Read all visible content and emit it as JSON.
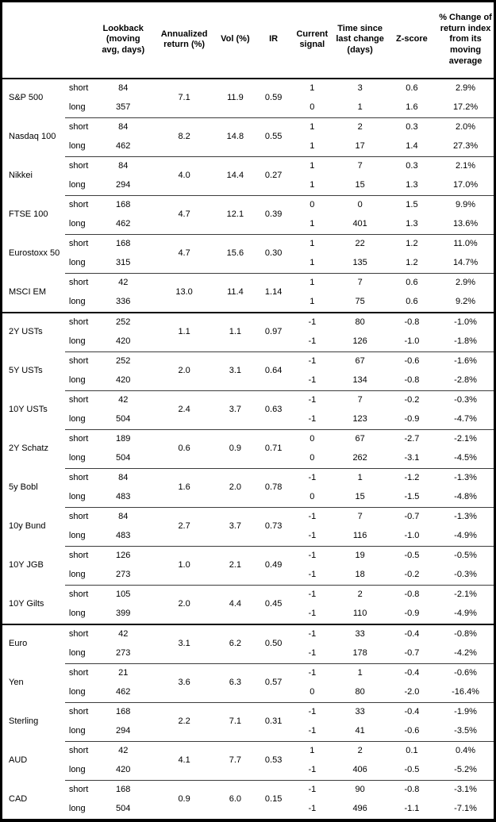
{
  "table": {
    "corner": "",
    "horizon_labels": {
      "short": "short",
      "long": "long"
    },
    "columns": [
      "Lookback\n(moving\navg, days)",
      "Annualized\nreturn (%)",
      "Vol (%)",
      "IR",
      "Current\nsignal",
      "Time since\nlast change\n(days)",
      "Z-score",
      "% Change of\nreturn index\nfrom its\nmoving\naverage"
    ],
    "column_names": [
      "lookback",
      "annualized-return",
      "vol",
      "ir",
      "current-signal",
      "time-since-last-change",
      "z-score",
      "pct-change-from-moving-average"
    ],
    "sections": [
      {
        "assets": [
          {
            "name": "S&P 500",
            "ann_return": "7.1",
            "vol": "11.9",
            "ir": "0.59",
            "short": {
              "lookback": "84",
              "signal": "1",
              "time_since": "3",
              "z_score": "0.6",
              "pct_change": "2.9%"
            },
            "long": {
              "lookback": "357",
              "signal": "0",
              "time_since": "1",
              "z_score": "1.6",
              "pct_change": "17.2%"
            }
          },
          {
            "name": "Nasdaq 100",
            "ann_return": "8.2",
            "vol": "14.8",
            "ir": "0.55",
            "short": {
              "lookback": "84",
              "signal": "1",
              "time_since": "2",
              "z_score": "0.3",
              "pct_change": "2.0%"
            },
            "long": {
              "lookback": "462",
              "signal": "1",
              "time_since": "17",
              "z_score": "1.4",
              "pct_change": "27.3%"
            }
          },
          {
            "name": "Nikkei",
            "ann_return": "4.0",
            "vol": "14.4",
            "ir": "0.27",
            "short": {
              "lookback": "84",
              "signal": "1",
              "time_since": "7",
              "z_score": "0.3",
              "pct_change": "2.1%"
            },
            "long": {
              "lookback": "294",
              "signal": "1",
              "time_since": "15",
              "z_score": "1.3",
              "pct_change": "17.0%"
            }
          },
          {
            "name": "FTSE 100",
            "ann_return": "4.7",
            "vol": "12.1",
            "ir": "0.39",
            "short": {
              "lookback": "168",
              "signal": "0",
              "time_since": "0",
              "z_score": "1.5",
              "pct_change": "9.9%"
            },
            "long": {
              "lookback": "462",
              "signal": "1",
              "time_since": "401",
              "z_score": "1.3",
              "pct_change": "13.6%"
            }
          },
          {
            "name": "Eurostoxx 50",
            "ann_return": "4.7",
            "vol": "15.6",
            "ir": "0.30",
            "short": {
              "lookback": "168",
              "signal": "1",
              "time_since": "22",
              "z_score": "1.2",
              "pct_change": "11.0%"
            },
            "long": {
              "lookback": "315",
              "signal": "1",
              "time_since": "135",
              "z_score": "1.2",
              "pct_change": "14.7%"
            }
          },
          {
            "name": "MSCI EM",
            "ann_return": "13.0",
            "vol": "11.4",
            "ir": "1.14",
            "short": {
              "lookback": "42",
              "signal": "1",
              "time_since": "7",
              "z_score": "0.6",
              "pct_change": "2.9%"
            },
            "long": {
              "lookback": "336",
              "signal": "1",
              "time_since": "75",
              "z_score": "0.6",
              "pct_change": "9.2%"
            }
          }
        ]
      },
      {
        "assets": [
          {
            "name": "2Y USTs",
            "ann_return": "1.1",
            "vol": "1.1",
            "ir": "0.97",
            "short": {
              "lookback": "252",
              "signal": "-1",
              "time_since": "80",
              "z_score": "-0.8",
              "pct_change": "-1.0%"
            },
            "long": {
              "lookback": "420",
              "signal": "-1",
              "time_since": "126",
              "z_score": "-1.0",
              "pct_change": "-1.8%"
            }
          },
          {
            "name": "5Y USTs",
            "ann_return": "2.0",
            "vol": "3.1",
            "ir": "0.64",
            "short": {
              "lookback": "252",
              "signal": "-1",
              "time_since": "67",
              "z_score": "-0.6",
              "pct_change": "-1.6%"
            },
            "long": {
              "lookback": "420",
              "signal": "-1",
              "time_since": "134",
              "z_score": "-0.8",
              "pct_change": "-2.8%"
            }
          },
          {
            "name": "10Y USTs",
            "ann_return": "2.4",
            "vol": "3.7",
            "ir": "0.63",
            "short": {
              "lookback": "42",
              "signal": "-1",
              "time_since": "7",
              "z_score": "-0.2",
              "pct_change": "-0.3%"
            },
            "long": {
              "lookback": "504",
              "signal": "-1",
              "time_since": "123",
              "z_score": "-0.9",
              "pct_change": "-4.7%"
            }
          },
          {
            "name": "2Y Schatz",
            "ann_return": "0.6",
            "vol": "0.9",
            "ir": "0.71",
            "short": {
              "lookback": "189",
              "signal": "0",
              "time_since": "67",
              "z_score": "-2.7",
              "pct_change": "-2.1%"
            },
            "long": {
              "lookback": "504",
              "signal": "0",
              "time_since": "262",
              "z_score": "-3.1",
              "pct_change": "-4.5%"
            }
          },
          {
            "name": "5y Bobl",
            "ann_return": "1.6",
            "vol": "2.0",
            "ir": "0.78",
            "short": {
              "lookback": "84",
              "signal": "-1",
              "time_since": "1",
              "z_score": "-1.2",
              "pct_change": "-1.3%"
            },
            "long": {
              "lookback": "483",
              "signal": "0",
              "time_since": "15",
              "z_score": "-1.5",
              "pct_change": "-4.8%"
            }
          },
          {
            "name": "10y Bund",
            "ann_return": "2.7",
            "vol": "3.7",
            "ir": "0.73",
            "short": {
              "lookback": "84",
              "signal": "-1",
              "time_since": "7",
              "z_score": "-0.7",
              "pct_change": "-1.3%"
            },
            "long": {
              "lookback": "483",
              "signal": "-1",
              "time_since": "116",
              "z_score": "-1.0",
              "pct_change": "-4.9%"
            }
          },
          {
            "name": "10Y JGB",
            "ann_return": "1.0",
            "vol": "2.1",
            "ir": "0.49",
            "short": {
              "lookback": "126",
              "signal": "-1",
              "time_since": "19",
              "z_score": "-0.5",
              "pct_change": "-0.5%"
            },
            "long": {
              "lookback": "273",
              "signal": "-1",
              "time_since": "18",
              "z_score": "-0.2",
              "pct_change": "-0.3%"
            }
          },
          {
            "name": "10Y Gilts",
            "ann_return": "2.0",
            "vol": "4.4",
            "ir": "0.45",
            "short": {
              "lookback": "105",
              "signal": "-1",
              "time_since": "2",
              "z_score": "-0.8",
              "pct_change": "-2.1%"
            },
            "long": {
              "lookback": "399",
              "signal": "-1",
              "time_since": "110",
              "z_score": "-0.9",
              "pct_change": "-4.9%"
            }
          }
        ]
      },
      {
        "assets": [
          {
            "name": "Euro",
            "ann_return": "3.1",
            "vol": "6.2",
            "ir": "0.50",
            "short": {
              "lookback": "42",
              "signal": "-1",
              "time_since": "33",
              "z_score": "-0.4",
              "pct_change": "-0.8%"
            },
            "long": {
              "lookback": "273",
              "signal": "-1",
              "time_since": "178",
              "z_score": "-0.7",
              "pct_change": "-4.2%"
            }
          },
          {
            "name": "Yen",
            "ann_return": "3.6",
            "vol": "6.3",
            "ir": "0.57",
            "short": {
              "lookback": "21",
              "signal": "-1",
              "time_since": "1",
              "z_score": "-0.4",
              "pct_change": "-0.6%"
            },
            "long": {
              "lookback": "462",
              "signal": "0",
              "time_since": "80",
              "z_score": "-2.0",
              "pct_change": "-16.4%"
            }
          },
          {
            "name": "Sterling",
            "ann_return": "2.2",
            "vol": "7.1",
            "ir": "0.31",
            "short": {
              "lookback": "168",
              "signal": "-1",
              "time_since": "33",
              "z_score": "-0.4",
              "pct_change": "-1.9%"
            },
            "long": {
              "lookback": "294",
              "signal": "-1",
              "time_since": "41",
              "z_score": "-0.6",
              "pct_change": "-3.5%"
            }
          },
          {
            "name": "AUD",
            "ann_return": "4.1",
            "vol": "7.7",
            "ir": "0.53",
            "short": {
              "lookback": "42",
              "signal": "1",
              "time_since": "2",
              "z_score": "0.1",
              "pct_change": "0.4%"
            },
            "long": {
              "lookback": "420",
              "signal": "-1",
              "time_since": "406",
              "z_score": "-0.5",
              "pct_change": "-5.2%"
            }
          },
          {
            "name": "CAD",
            "ann_return": "0.9",
            "vol": "6.0",
            "ir": "0.15",
            "short": {
              "lookback": "168",
              "signal": "-1",
              "time_since": "90",
              "z_score": "-0.8",
              "pct_change": "-3.1%"
            },
            "long": {
              "lookback": "504",
              "signal": "-1",
              "time_since": "496",
              "z_score": "-1.1",
              "pct_change": "-7.1%"
            }
          }
        ]
      }
    ]
  }
}
